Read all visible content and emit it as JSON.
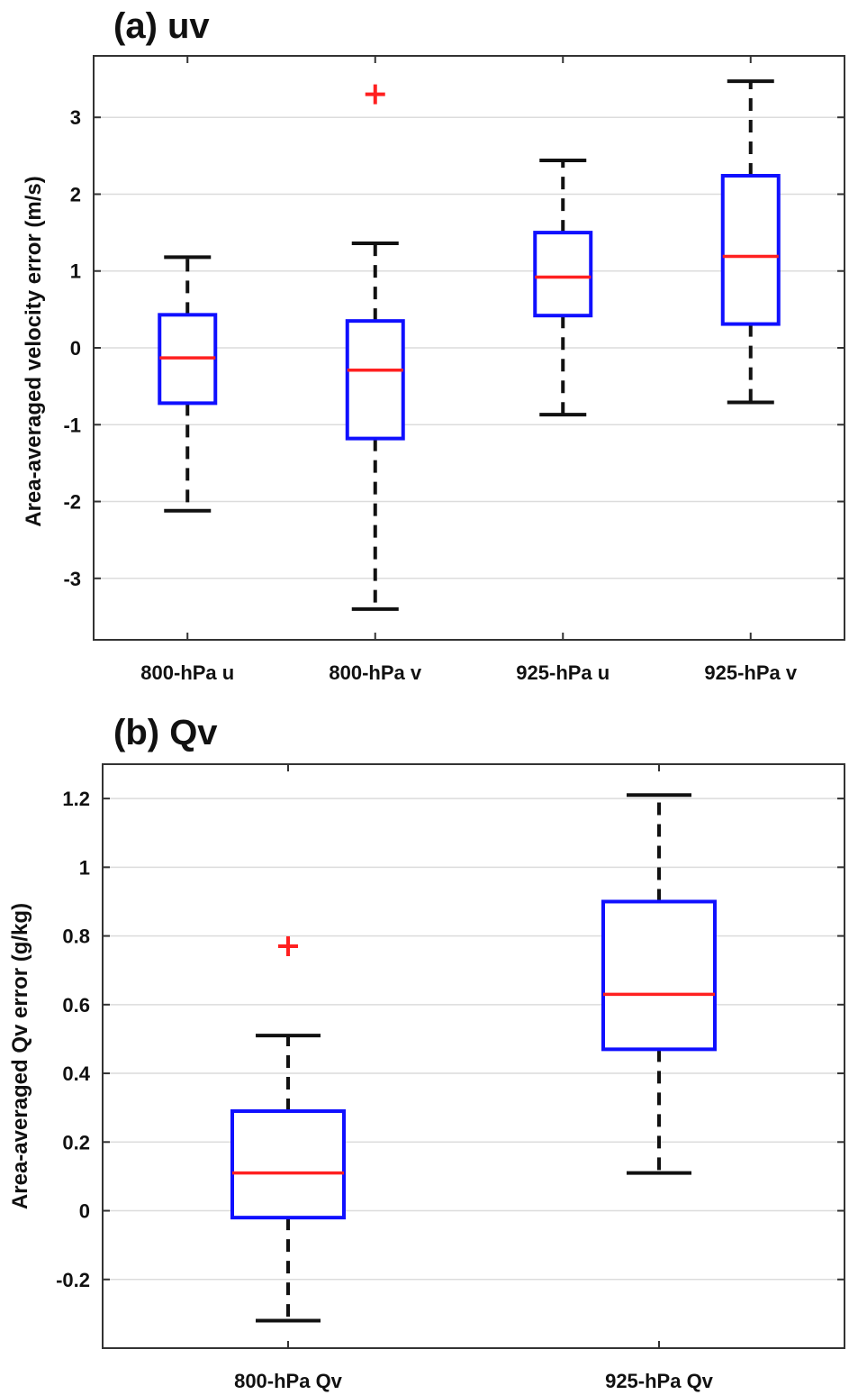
{
  "colors": {
    "box": "#1010ff",
    "median": "#ff2020",
    "whisker": "#111111",
    "outlier": "#ff2020",
    "grid": "#dcdcdc",
    "axis": "#333333"
  },
  "chart_data": [
    {
      "type": "box",
      "title": "(a) uv",
      "ylabel": "Area-averaged velocity error (m/s)",
      "xlabel": "",
      "ylim": [
        -3.8,
        3.8
      ],
      "yticks": [
        -3,
        -2,
        -1,
        0,
        1,
        2,
        3
      ],
      "grid": true,
      "categories": [
        "800-hPa u",
        "800-hPa v",
        "925-hPa u",
        "925-hPa v"
      ],
      "boxes": [
        {
          "whisker_low": -2.12,
          "q1": -0.72,
          "median": -0.13,
          "q3": 0.43,
          "whisker_high": 1.18,
          "outliers": []
        },
        {
          "whisker_low": -3.4,
          "q1": -1.18,
          "median": -0.29,
          "q3": 0.35,
          "whisker_high": 1.36,
          "outliers": [
            3.3
          ]
        },
        {
          "whisker_low": -0.87,
          "q1": 0.42,
          "median": 0.92,
          "q3": 1.5,
          "whisker_high": 2.44,
          "outliers": []
        },
        {
          "whisker_low": -0.71,
          "q1": 0.31,
          "median": 1.19,
          "q3": 2.24,
          "whisker_high": 3.47,
          "outliers": []
        }
      ]
    },
    {
      "type": "box",
      "title": "(b) Qv",
      "ylabel": "Area-averaged Qv error (g/kg)",
      "xlabel": "",
      "ylim": [
        -0.4,
        1.3
      ],
      "yticks": [
        -0.2,
        0,
        0.2,
        0.4,
        0.6,
        0.8,
        1,
        1.2
      ],
      "grid": true,
      "categories": [
        "800-hPa Qv",
        "925-hPa Qv"
      ],
      "boxes": [
        {
          "whisker_low": -0.32,
          "q1": -0.02,
          "median": 0.11,
          "q3": 0.29,
          "whisker_high": 0.51,
          "outliers": [
            0.77
          ]
        },
        {
          "whisker_low": 0.11,
          "q1": 0.47,
          "median": 0.63,
          "q3": 0.9,
          "whisker_high": 1.21,
          "outliers": []
        }
      ]
    }
  ]
}
